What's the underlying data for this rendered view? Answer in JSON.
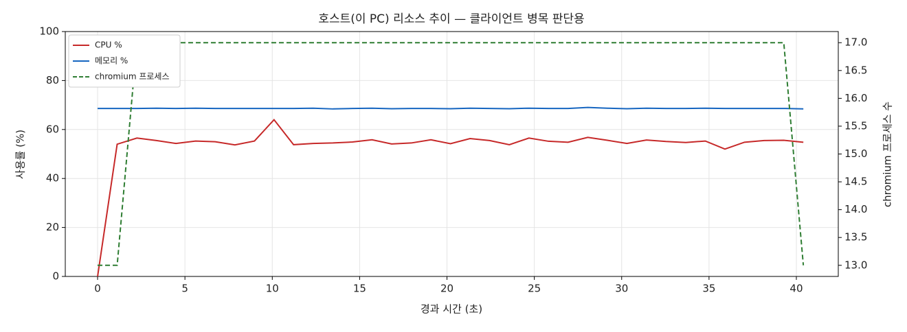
{
  "chart_data": {
    "type": "line",
    "title": "호스트(이 PC) 리소스 추이 — 클라이언트 병목 판단용",
    "x_label": "경과 시간 (초)",
    "y_label": "사용률 (%)",
    "y2_label": "chromium 프로세스 수",
    "x": [
      0,
      1.12,
      2.25,
      3.37,
      4.49,
      5.61,
      6.73,
      7.86,
      8.98,
      10.1,
      11.22,
      12.34,
      13.47,
      14.59,
      15.71,
      16.83,
      17.96,
      19.08,
      20.2,
      21.32,
      22.44,
      23.57,
      24.69,
      25.81,
      26.93,
      28.06,
      29.18,
      30.3,
      31.42,
      32.54,
      33.67,
      34.79,
      35.91,
      37.03,
      38.15,
      39.28,
      40.4
    ],
    "series": [
      {
        "name": "CPU %",
        "color": "#c62828",
        "dash": false,
        "axis": "y",
        "values": [
          0,
          54,
          56.5,
          55.5,
          54.3,
          55.3,
          55,
          53.7,
          55.3,
          64,
          53.8,
          54.3,
          54.5,
          54.9,
          55.8,
          54.1,
          54.5,
          55.8,
          54.2,
          56.3,
          55.5,
          53.8,
          56.5,
          55.2,
          54.8,
          56.8,
          55.6,
          54.3,
          55.7,
          55.1,
          54.7,
          55.3,
          52,
          54.8,
          55.5,
          55.6,
          54.8
        ]
      },
      {
        "name": "메모리 %",
        "color": "#1565c0",
        "dash": false,
        "axis": "y",
        "values": [
          68.6,
          68.6,
          68.6,
          68.7,
          68.6,
          68.7,
          68.6,
          68.6,
          68.6,
          68.6,
          68.6,
          68.7,
          68.4,
          68.6,
          68.7,
          68.5,
          68.6,
          68.6,
          68.5,
          68.7,
          68.6,
          68.5,
          68.7,
          68.6,
          68.6,
          69,
          68.7,
          68.5,
          68.7,
          68.6,
          68.6,
          68.7,
          68.6,
          68.6,
          68.6,
          68.6,
          68.4
        ]
      },
      {
        "name": "chromium 프로세스",
        "color": "#2e7d32",
        "dash": true,
        "axis": "y2",
        "values": [
          13,
          13,
          17,
          17,
          17,
          17,
          17,
          17,
          17,
          17,
          17,
          17,
          17,
          17,
          17,
          17,
          17,
          17,
          17,
          17,
          17,
          17,
          17,
          17,
          17,
          17,
          17,
          17,
          17,
          17,
          17,
          17,
          17,
          17,
          17,
          17,
          13
        ]
      }
    ],
    "xlim": [
      -1.85,
      42.4
    ],
    "xticks": [
      0,
      5,
      10,
      15,
      20,
      25,
      30,
      35,
      40
    ],
    "ylim": [
      0,
      100
    ],
    "yticks": [
      0,
      20,
      40,
      60,
      80,
      100
    ],
    "y2lim": [
      12.8,
      17.2
    ],
    "y2ticks": [
      {
        "value": 13,
        "label": "13.0"
      },
      {
        "value": 13.5,
        "label": "13.5"
      },
      {
        "value": 14,
        "label": "14.0"
      },
      {
        "value": 14.5,
        "label": "14.5"
      },
      {
        "value": 15,
        "label": "15.0"
      },
      {
        "value": 15.5,
        "label": "15.5"
      },
      {
        "value": 16,
        "label": "16.0"
      },
      {
        "value": 16.5,
        "label": "16.5"
      },
      {
        "value": 17,
        "label": "17.0"
      }
    ],
    "grid": true,
    "legend": "upper-left"
  }
}
